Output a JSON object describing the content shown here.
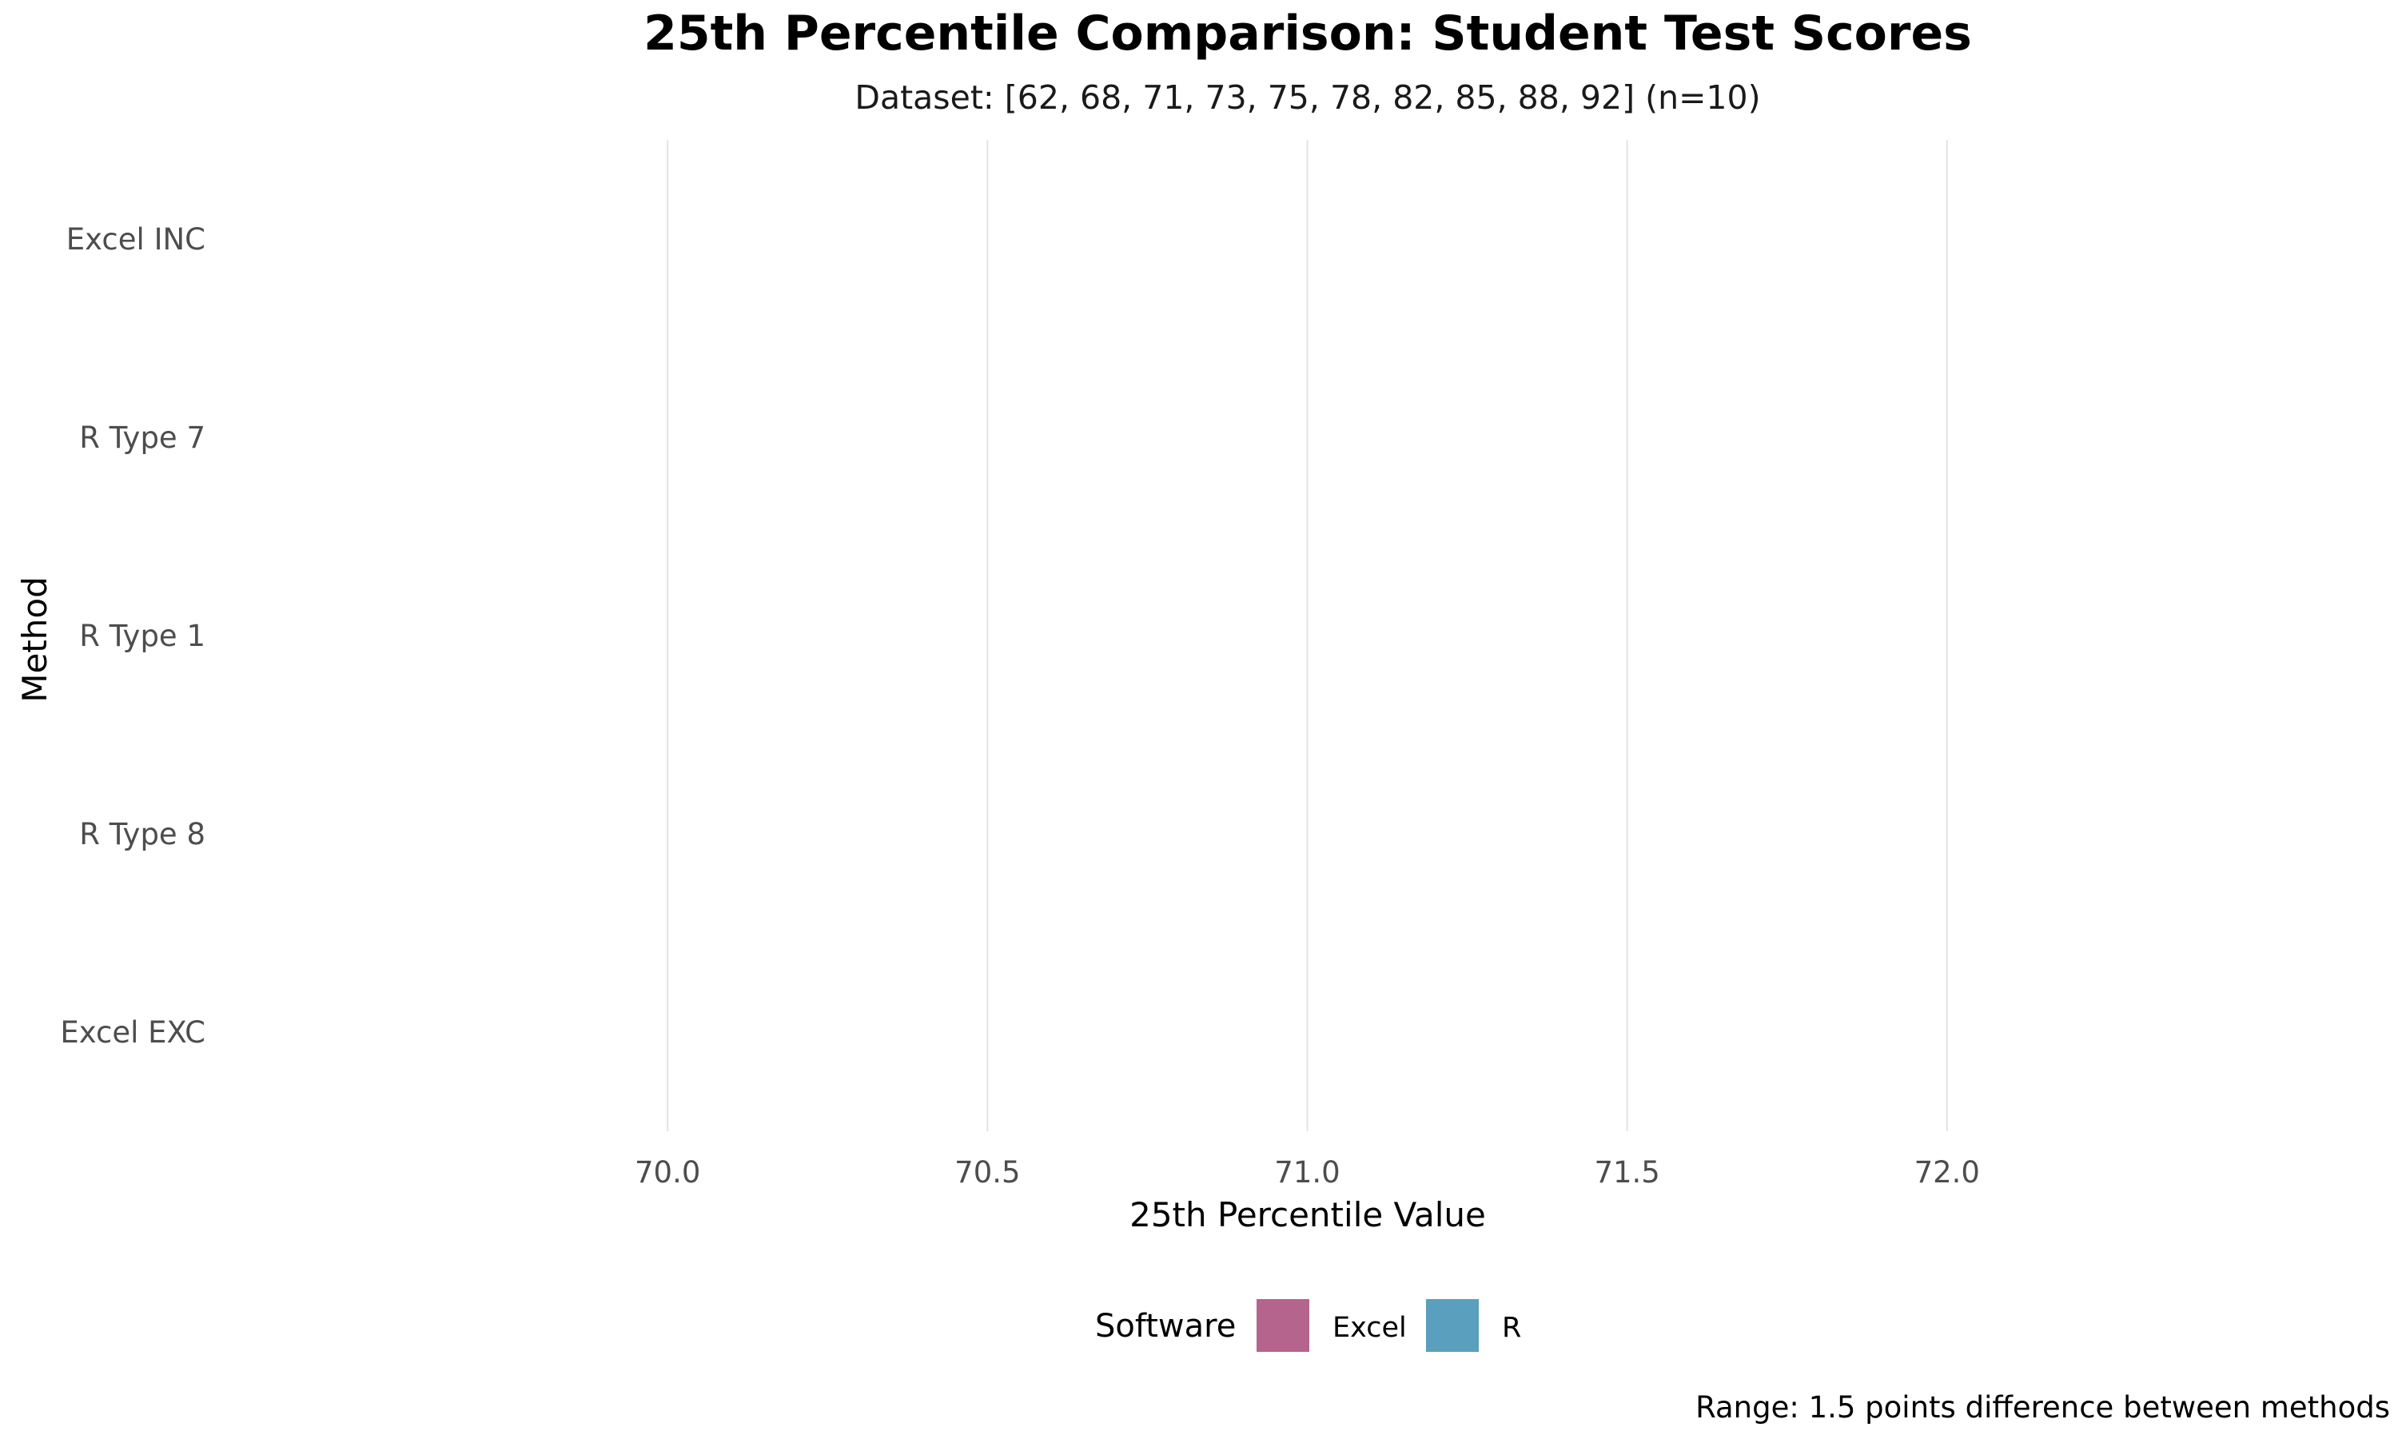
{
  "chart_data": {
    "type": "bar",
    "orientation": "horizontal",
    "title": "25th Percentile Comparison: Student Test Scores",
    "subtitle": "Dataset: [62, 68, 71, 73, 75, 78, 82, 85, 88, 92] (n=10)",
    "xlabel": "25th Percentile Value",
    "ylabel": "Method",
    "categories": [
      "Excel INC",
      "R Type 7",
      "R Type 1",
      "R Type 8",
      "Excel EXC"
    ],
    "x_ticks": [
      "70.0",
      "70.5",
      "71.0",
      "71.5",
      "72.0"
    ],
    "x_tick_values": [
      70.0,
      70.5,
      71.0,
      71.5,
      72.0
    ],
    "xlim": [
      69.3,
      72.7
    ],
    "grid": "vertical major",
    "legend": {
      "title": "Software",
      "position": "bottom",
      "entries": [
        {
          "label": "Excel",
          "color": "#b5648d"
        },
        {
          "label": "R",
          "color": "#5a9fbd"
        }
      ]
    },
    "caption": "Range: 1.5 points difference between methods"
  }
}
